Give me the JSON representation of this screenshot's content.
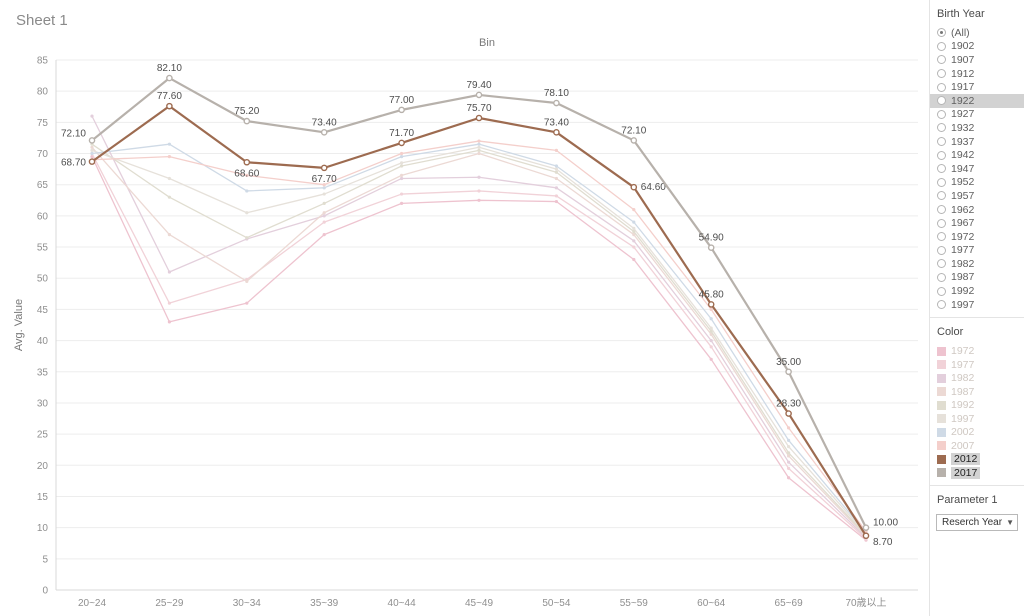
{
  "sheet": {
    "title": "Sheet 1"
  },
  "chart_data": {
    "type": "line",
    "title": "Bin",
    "ylabel": "Avg. Value",
    "ylim": [
      0,
      85
    ],
    "ytick_step": 5,
    "grid": "horizontal",
    "categories": [
      "20~24",
      "25~29",
      "30~34",
      "35~39",
      "40~44",
      "45~49",
      "50~54",
      "55~59",
      "60~64",
      "65~69",
      "70歳以上"
    ],
    "series": [
      {
        "name": "1972",
        "color": "#eec3cf",
        "highlighted": false,
        "values": [
          69.5,
          43.0,
          46.0,
          57.0,
          62.0,
          62.5,
          62.3,
          53.0,
          37.0,
          18.0,
          8.0
        ]
      },
      {
        "name": "1977",
        "color": "#f1d2d8",
        "highlighted": false,
        "values": [
          70.0,
          46.0,
          49.8,
          59.0,
          63.5,
          64.0,
          63.2,
          55.0,
          39.0,
          19.5,
          8.2
        ]
      },
      {
        "name": "1982",
        "color": "#e3cfdc",
        "highlighted": false,
        "values": [
          76.0,
          51.0,
          56.3,
          60.0,
          66.0,
          66.2,
          64.5,
          56.0,
          40.0,
          20.5,
          8.4
        ]
      },
      {
        "name": "1987",
        "color": "#ecd9d4",
        "highlighted": false,
        "values": [
          71.0,
          57.0,
          49.5,
          60.5,
          66.5,
          70.0,
          66.0,
          57.0,
          41.0,
          21.5,
          8.6
        ]
      },
      {
        "name": "1992",
        "color": "#e0ddd0",
        "highlighted": false,
        "values": [
          71.5,
          63.0,
          56.5,
          62.0,
          68.0,
          70.5,
          67.0,
          57.5,
          41.5,
          22.0,
          8.8
        ]
      },
      {
        "name": "1997",
        "color": "#e6e1da",
        "highlighted": false,
        "values": [
          70.5,
          66.0,
          60.5,
          63.5,
          68.5,
          71.0,
          67.5,
          58.0,
          42.0,
          23.0,
          9.0
        ]
      },
      {
        "name": "2002",
        "color": "#cfdae6",
        "highlighted": false,
        "values": [
          70.0,
          71.5,
          64.0,
          64.5,
          69.5,
          71.5,
          68.0,
          59.0,
          43.5,
          24.0,
          9.2
        ]
      },
      {
        "name": "2007",
        "color": "#f4cfcb",
        "highlighted": false,
        "values": [
          69.0,
          69.5,
          66.5,
          65.0,
          70.0,
          72.0,
          70.5,
          61.0,
          45.0,
          26.0,
          9.4
        ]
      },
      {
        "name": "2012",
        "color": "#9d6b50",
        "highlighted": true,
        "values": [
          68.7,
          77.6,
          68.6,
          67.7,
          71.7,
          75.7,
          73.4,
          64.6,
          45.8,
          28.3,
          8.7
        ],
        "labels": [
          "68.70",
          "77.60",
          "68.60",
          "67.70",
          "71.70",
          "75.70",
          "73.40",
          "64.60",
          "45.80",
          "28.30",
          "8.70"
        ],
        "label_offsets": [
          [
            -6,
            4,
            "end"
          ],
          [
            0,
            -7,
            "middle"
          ],
          [
            0,
            14,
            "middle"
          ],
          [
            0,
            14,
            "middle"
          ],
          [
            0,
            -7,
            "middle"
          ],
          [
            0,
            -7,
            "middle"
          ],
          [
            0,
            -7,
            "middle"
          ],
          [
            7,
            3,
            "start"
          ],
          [
            0,
            -7,
            "middle"
          ],
          [
            0,
            -7,
            "middle"
          ],
          [
            7,
            9,
            "start"
          ]
        ]
      },
      {
        "name": "2017",
        "color": "#b7b1ab",
        "highlighted": true,
        "values": [
          72.1,
          82.1,
          75.2,
          73.4,
          77.0,
          79.4,
          78.1,
          72.1,
          54.9,
          35.0,
          10.0
        ],
        "labels": [
          "72.10",
          "82.10",
          "75.20",
          "73.40",
          "77.00",
          "79.40",
          "78.10",
          "72.10",
          "54.90",
          "35.00",
          "10.00"
        ],
        "label_offsets": [
          [
            -6,
            -4,
            "end"
          ],
          [
            0,
            -7,
            "middle"
          ],
          [
            0,
            -7,
            "middle"
          ],
          [
            0,
            -7,
            "middle"
          ],
          [
            0,
            -7,
            "middle"
          ],
          [
            0,
            -7,
            "middle"
          ],
          [
            0,
            -7,
            "middle"
          ],
          [
            0,
            -7,
            "middle"
          ],
          [
            0,
            -7,
            "middle"
          ],
          [
            0,
            -7,
            "middle"
          ],
          [
            7,
            -2,
            "start"
          ]
        ]
      }
    ]
  },
  "birth_year_filter": {
    "title": "Birth Year",
    "selected": "(All)",
    "highlighted": "1922",
    "options": [
      "(All)",
      "1902",
      "1907",
      "1912",
      "1917",
      "1922",
      "1927",
      "1932",
      "1937",
      "1942",
      "1947",
      "1952",
      "1957",
      "1962",
      "1967",
      "1972",
      "1977",
      "1982",
      "1987",
      "1992",
      "1997"
    ]
  },
  "color_legend": {
    "title": "Color",
    "items": [
      {
        "label": "1972",
        "color": "#eec3cf",
        "highlighted": false
      },
      {
        "label": "1977",
        "color": "#f1d2d8",
        "highlighted": false
      },
      {
        "label": "1982",
        "color": "#e3cfdc",
        "highlighted": false
      },
      {
        "label": "1987",
        "color": "#ecd9d4",
        "highlighted": false
      },
      {
        "label": "1992",
        "color": "#e0ddd0",
        "highlighted": false
      },
      {
        "label": "1997",
        "color": "#e6e1da",
        "highlighted": false
      },
      {
        "label": "2002",
        "color": "#cfdae6",
        "highlighted": false
      },
      {
        "label": "2007",
        "color": "#f4cfcb",
        "highlighted": false
      },
      {
        "label": "2012",
        "color": "#9d6b50",
        "highlighted": true
      },
      {
        "label": "2017",
        "color": "#b7b1ab",
        "highlighted": true
      }
    ]
  },
  "parameter": {
    "title": "Parameter 1",
    "value": "Reserch Year"
  }
}
